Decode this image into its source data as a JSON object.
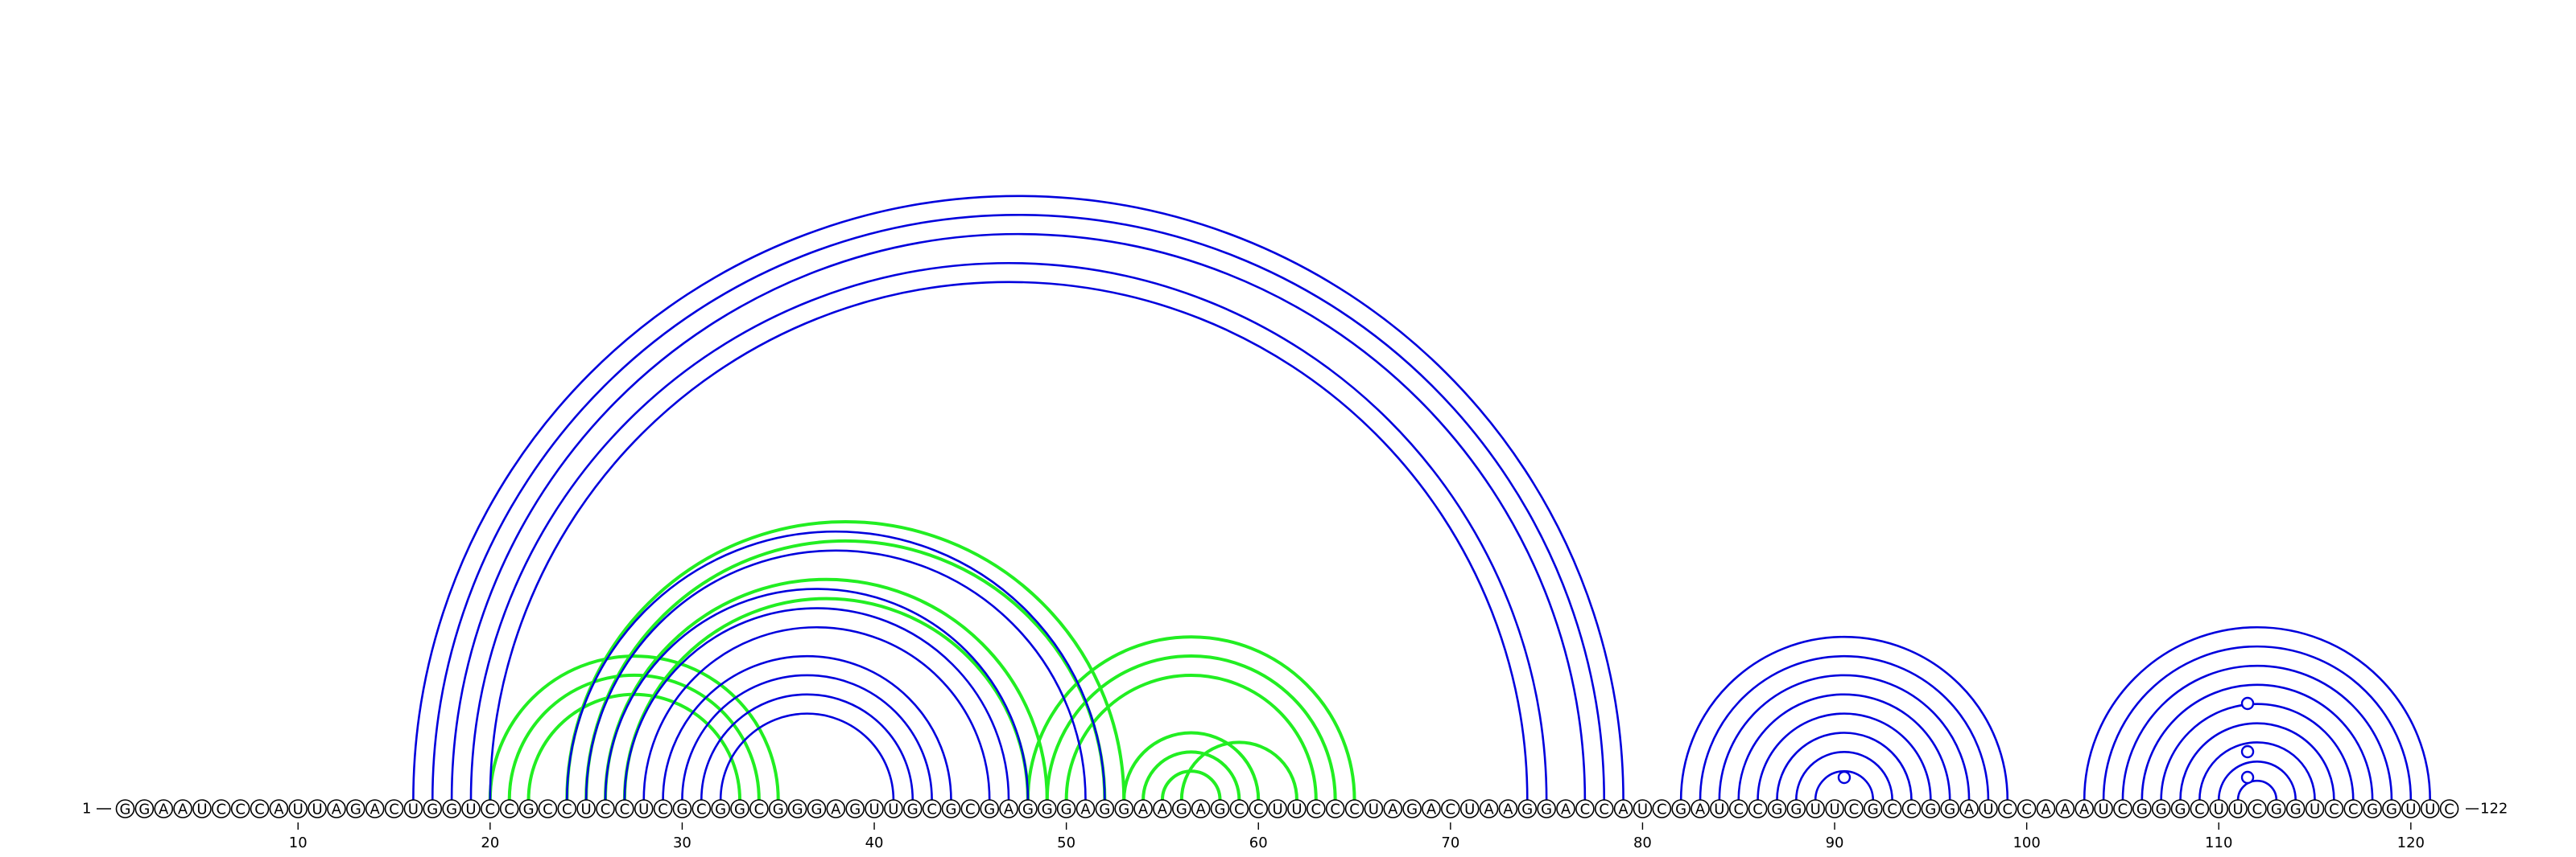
{
  "sequence": "GGAAUCCCAUUAGACUGGUCCGCCUCCUCGCGGCGGGAGUUGCGCGAGGGAGGAAGAGCCUUCCCUAGACUAAGGACCAUCGAUCCGGUUCGCCGGAUCCAAAUCGGGCUUCGGUCCGGUUC",
  "start_label": "1",
  "end_label": "122",
  "ticks": [
    10,
    20,
    30,
    40,
    50,
    60,
    70,
    80,
    90,
    100,
    110,
    120
  ],
  "colors": {
    "blue": "#0000dd",
    "green": "#22ee22"
  },
  "pairs_blue": [
    [
      16,
      79
    ],
    [
      17,
      78
    ],
    [
      18,
      77
    ],
    [
      19,
      75
    ],
    [
      20,
      74
    ],
    [
      24,
      52
    ],
    [
      25,
      51
    ],
    [
      26,
      48
    ],
    [
      27,
      47
    ],
    [
      28,
      46
    ],
    [
      29,
      44
    ],
    [
      30,
      43
    ],
    [
      31,
      42
    ],
    [
      32,
      41
    ],
    [
      82,
      99
    ],
    [
      83,
      98
    ],
    [
      84,
      97
    ],
    [
      85,
      96
    ],
    [
      86,
      95
    ],
    [
      87,
      94
    ],
    [
      88,
      93
    ],
    [
      89,
      92
    ],
    [
      103,
      121
    ],
    [
      104,
      120
    ],
    [
      105,
      119
    ],
    [
      106,
      118
    ],
    [
      107,
      117
    ],
    [
      108,
      116
    ],
    [
      109,
      115
    ],
    [
      110,
      114
    ],
    [
      111,
      113
    ]
  ],
  "pairs_green": [
    [
      20,
      35
    ],
    [
      21,
      34
    ],
    [
      22,
      33
    ],
    [
      24,
      53
    ],
    [
      25,
      52
    ],
    [
      26,
      49
    ],
    [
      27,
      48
    ],
    [
      48,
      65
    ],
    [
      49,
      64
    ],
    [
      50,
      63
    ],
    [
      53,
      60
    ],
    [
      54,
      59
    ],
    [
      55,
      58
    ],
    [
      56,
      62
    ]
  ],
  "marked_positions": [
    90.5,
    111.5
  ]
}
